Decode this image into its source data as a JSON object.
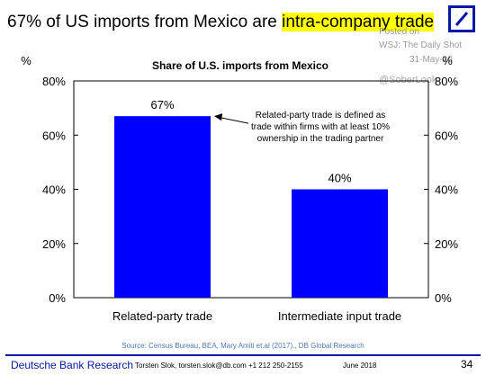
{
  "headline": {
    "prefix": "67% of US imports from Mexico are ",
    "highlight": "intra-company trade"
  },
  "watermark": {
    "line1": "Posted on",
    "line2": "WSJ: The Daily Shot",
    "line3": "31-May-20",
    "handle": "@SoberLook"
  },
  "chart_data": {
    "type": "bar",
    "title": "Share of U.S. imports from Mexico",
    "ylabel_left": "%",
    "ylabel_right": "%",
    "categories": [
      "Related-party trade",
      "Intermediate input trade"
    ],
    "values": [
      67,
      40
    ],
    "data_labels": [
      "67%",
      "40%"
    ],
    "ylim": [
      0,
      80
    ],
    "yticks": [
      0,
      20,
      40,
      60,
      80
    ],
    "ytick_labels": [
      "0%",
      "20%",
      "40%",
      "60%",
      "80%"
    ],
    "bar_color": "#0000ff",
    "grid": false,
    "annotation": {
      "lines": [
        "Related-party trade is defined as",
        "trade within firms with at least 10%",
        "ownership in the trading partner"
      ],
      "points_to": "Related-party trade"
    }
  },
  "source": "Source: Census Bureau, BEA, Mary Amiti et.al (2017)., DB Global Research",
  "footer": {
    "brand": "Deutsche Bank Research",
    "contact": "Torsten Slok, torsten.slok@db.com  +1 212 250-2155",
    "date": "June 2018",
    "page": "34"
  },
  "colors": {
    "brand_blue": "#0018a8",
    "highlight": "#ffff00"
  }
}
